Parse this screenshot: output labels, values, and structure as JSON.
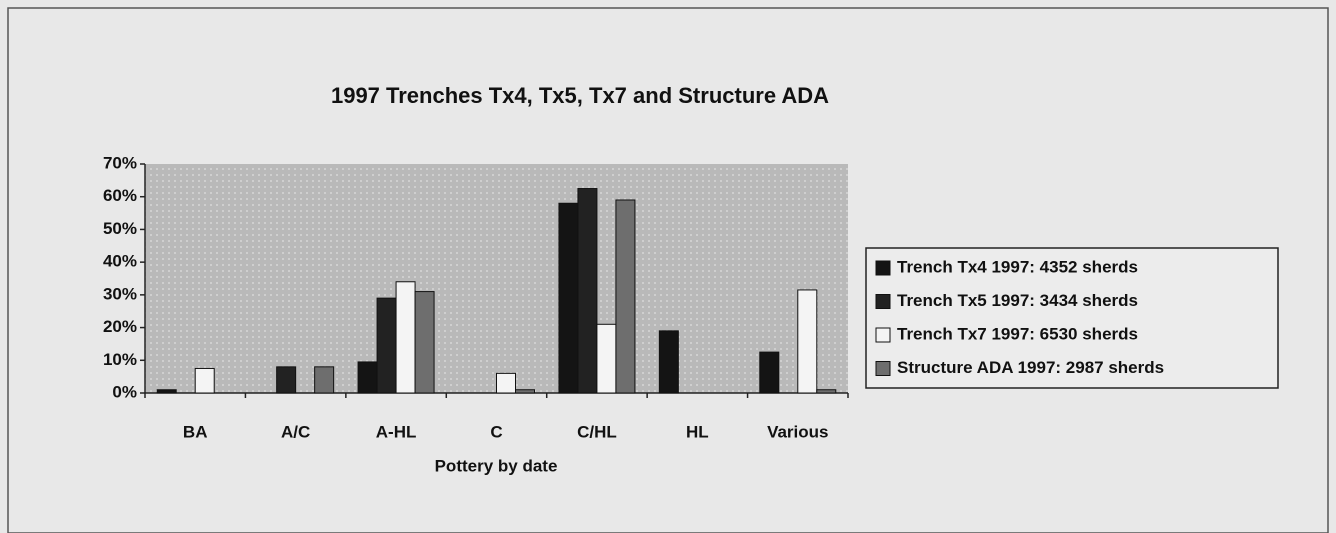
{
  "chart_data": {
    "type": "bar",
    "title": "1997 Trenches Tx4, Tx5, Tx7 and Structure ADA",
    "x_label": "Pottery by date",
    "categories": [
      "BA",
      "A/C",
      "A-HL",
      "C",
      "C/HL",
      "HL",
      "Various"
    ],
    "series": [
      {
        "name": "Trench Tx4 1997: 4352 sherds",
        "color": "#141414",
        "values": [
          1,
          0,
          9.5,
          0,
          58,
          19,
          12.5
        ]
      },
      {
        "name": "Trench Tx5 1997: 3434 sherds",
        "color": "#222222",
        "values": [
          0,
          8,
          29,
          0,
          62.5,
          0,
          0
        ]
      },
      {
        "name": "Trench Tx7 1997: 6530 sherds",
        "color": "#f4f4f4",
        "values": [
          7.5,
          0,
          34,
          6,
          21,
          0,
          31.5
        ]
      },
      {
        "name": "Structure ADA 1997: 2987 sherds",
        "color": "#6e6e6e",
        "values": [
          0,
          8,
          31,
          1,
          59,
          0,
          1
        ]
      }
    ],
    "ylim": [
      0,
      70
    ],
    "yticks": [
      {
        "value": 0,
        "label": "0%"
      },
      {
        "value": 10,
        "label": "10%"
      },
      {
        "value": 20,
        "label": "20%"
      },
      {
        "value": 30,
        "label": "30%"
      },
      {
        "value": 40,
        "label": "40%"
      },
      {
        "value": 50,
        "label": "50%"
      },
      {
        "value": 60,
        "label": "60%"
      },
      {
        "value": 70,
        "label": "70%"
      }
    ],
    "legend": "right"
  }
}
